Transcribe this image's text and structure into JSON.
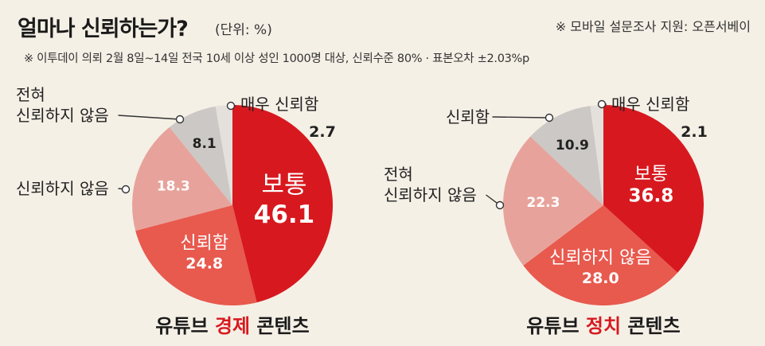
{
  "header": {
    "title": "얼마나 신뢰하는가?",
    "unit": "(단위: %)",
    "source": "※ 모바일 설문조사 지원: 오픈서베이",
    "note": "※ 이투데이 의뢰 2월 8일~14일 전국 10세 이상 성인 1000명 대상, 신뢰수준 80% · 표본오차 ±2.03%p"
  },
  "chart_data": [
    {
      "type": "pie",
      "title_plain": "유튜브 ",
      "title_highlight": "경제",
      "title_rest": " 콘텐츠",
      "slices": [
        {
          "name": "보통",
          "value": 46.1,
          "color": "#d7191f"
        },
        {
          "name": "신뢰함",
          "value": 24.8,
          "color": "#e8594e"
        },
        {
          "name": "신뢰하지 않음",
          "value": 18.3,
          "color": "#e7a39b"
        },
        {
          "name": "전혀 신뢰하지 않음",
          "value": 8.1,
          "color": "#cbc8c5"
        },
        {
          "name": "매우 신뢰함",
          "value": 2.7,
          "color": "#e4e1dd"
        }
      ]
    },
    {
      "type": "pie",
      "title_plain": "유튜브 ",
      "title_highlight": "정치",
      "title_rest": " 콘텐츠",
      "slices": [
        {
          "name": "보통",
          "value": 36.8,
          "color": "#d7191f"
        },
        {
          "name": "신뢰하지 않음",
          "value": 28.0,
          "color": "#e8594e"
        },
        {
          "name": "전혀 신뢰하지 않음",
          "value": 22.3,
          "color": "#e7a39b"
        },
        {
          "name": "신뢰함",
          "value": 10.9,
          "color": "#cbc8c5"
        },
        {
          "name": "매우 신뢰함",
          "value": 2.1,
          "color": "#e4e1dd"
        }
      ]
    }
  ]
}
